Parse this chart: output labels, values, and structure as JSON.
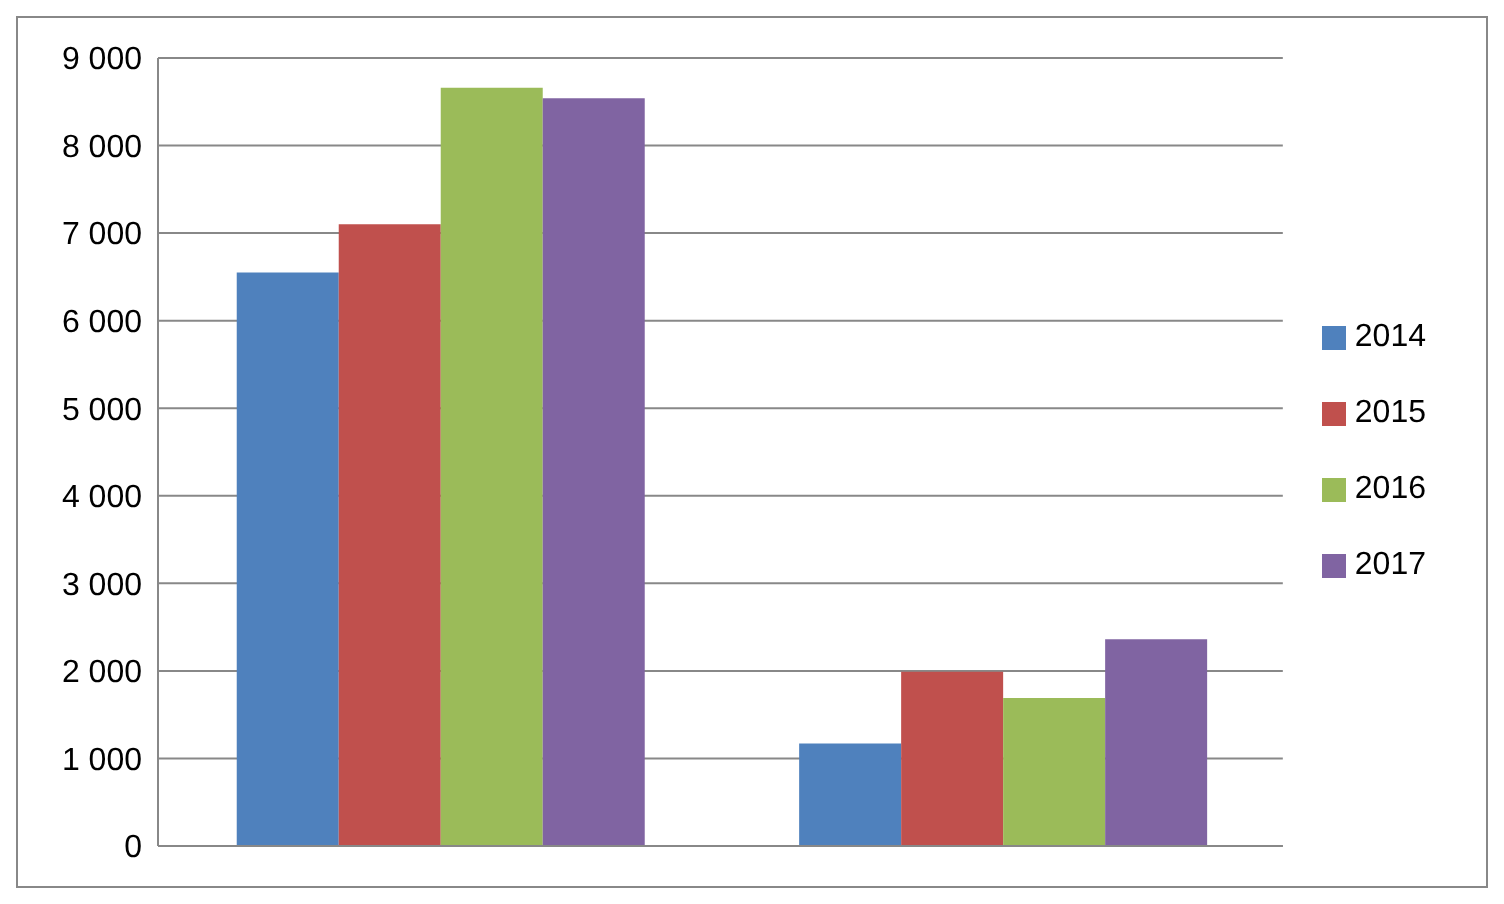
{
  "chart_data": {
    "type": "bar",
    "categories": [
      null,
      null
    ],
    "series": [
      {
        "name": "2014",
        "color": "#4f81bd",
        "values": [
          6550,
          1170
        ]
      },
      {
        "name": "2015",
        "color": "#c0504d",
        "values": [
          7100,
          1990
        ]
      },
      {
        "name": "2016",
        "color": "#9bbb59",
        "values": [
          8660,
          1690
        ]
      },
      {
        "name": "2017",
        "color": "#8064a2",
        "values": [
          8540,
          2360
        ]
      }
    ],
    "ylim": [
      0,
      9000
    ],
    "yticks": [
      0,
      {
        "value": 1000,
        "label": "1 000"
      },
      {
        "value": 2000,
        "label": "2 000"
      },
      {
        "value": 3000,
        "label": "3 000"
      },
      {
        "value": 4000,
        "label": "4 000"
      },
      {
        "value": 5000,
        "label": "5 000"
      },
      {
        "value": 6000,
        "label": "6 000"
      },
      {
        "value": 7000,
        "label": "7 000"
      },
      {
        "value": 8000,
        "label": "8 000"
      },
      {
        "value": 9000,
        "label": "9 000"
      }
    ],
    "grid": "y",
    "legend": "right"
  }
}
